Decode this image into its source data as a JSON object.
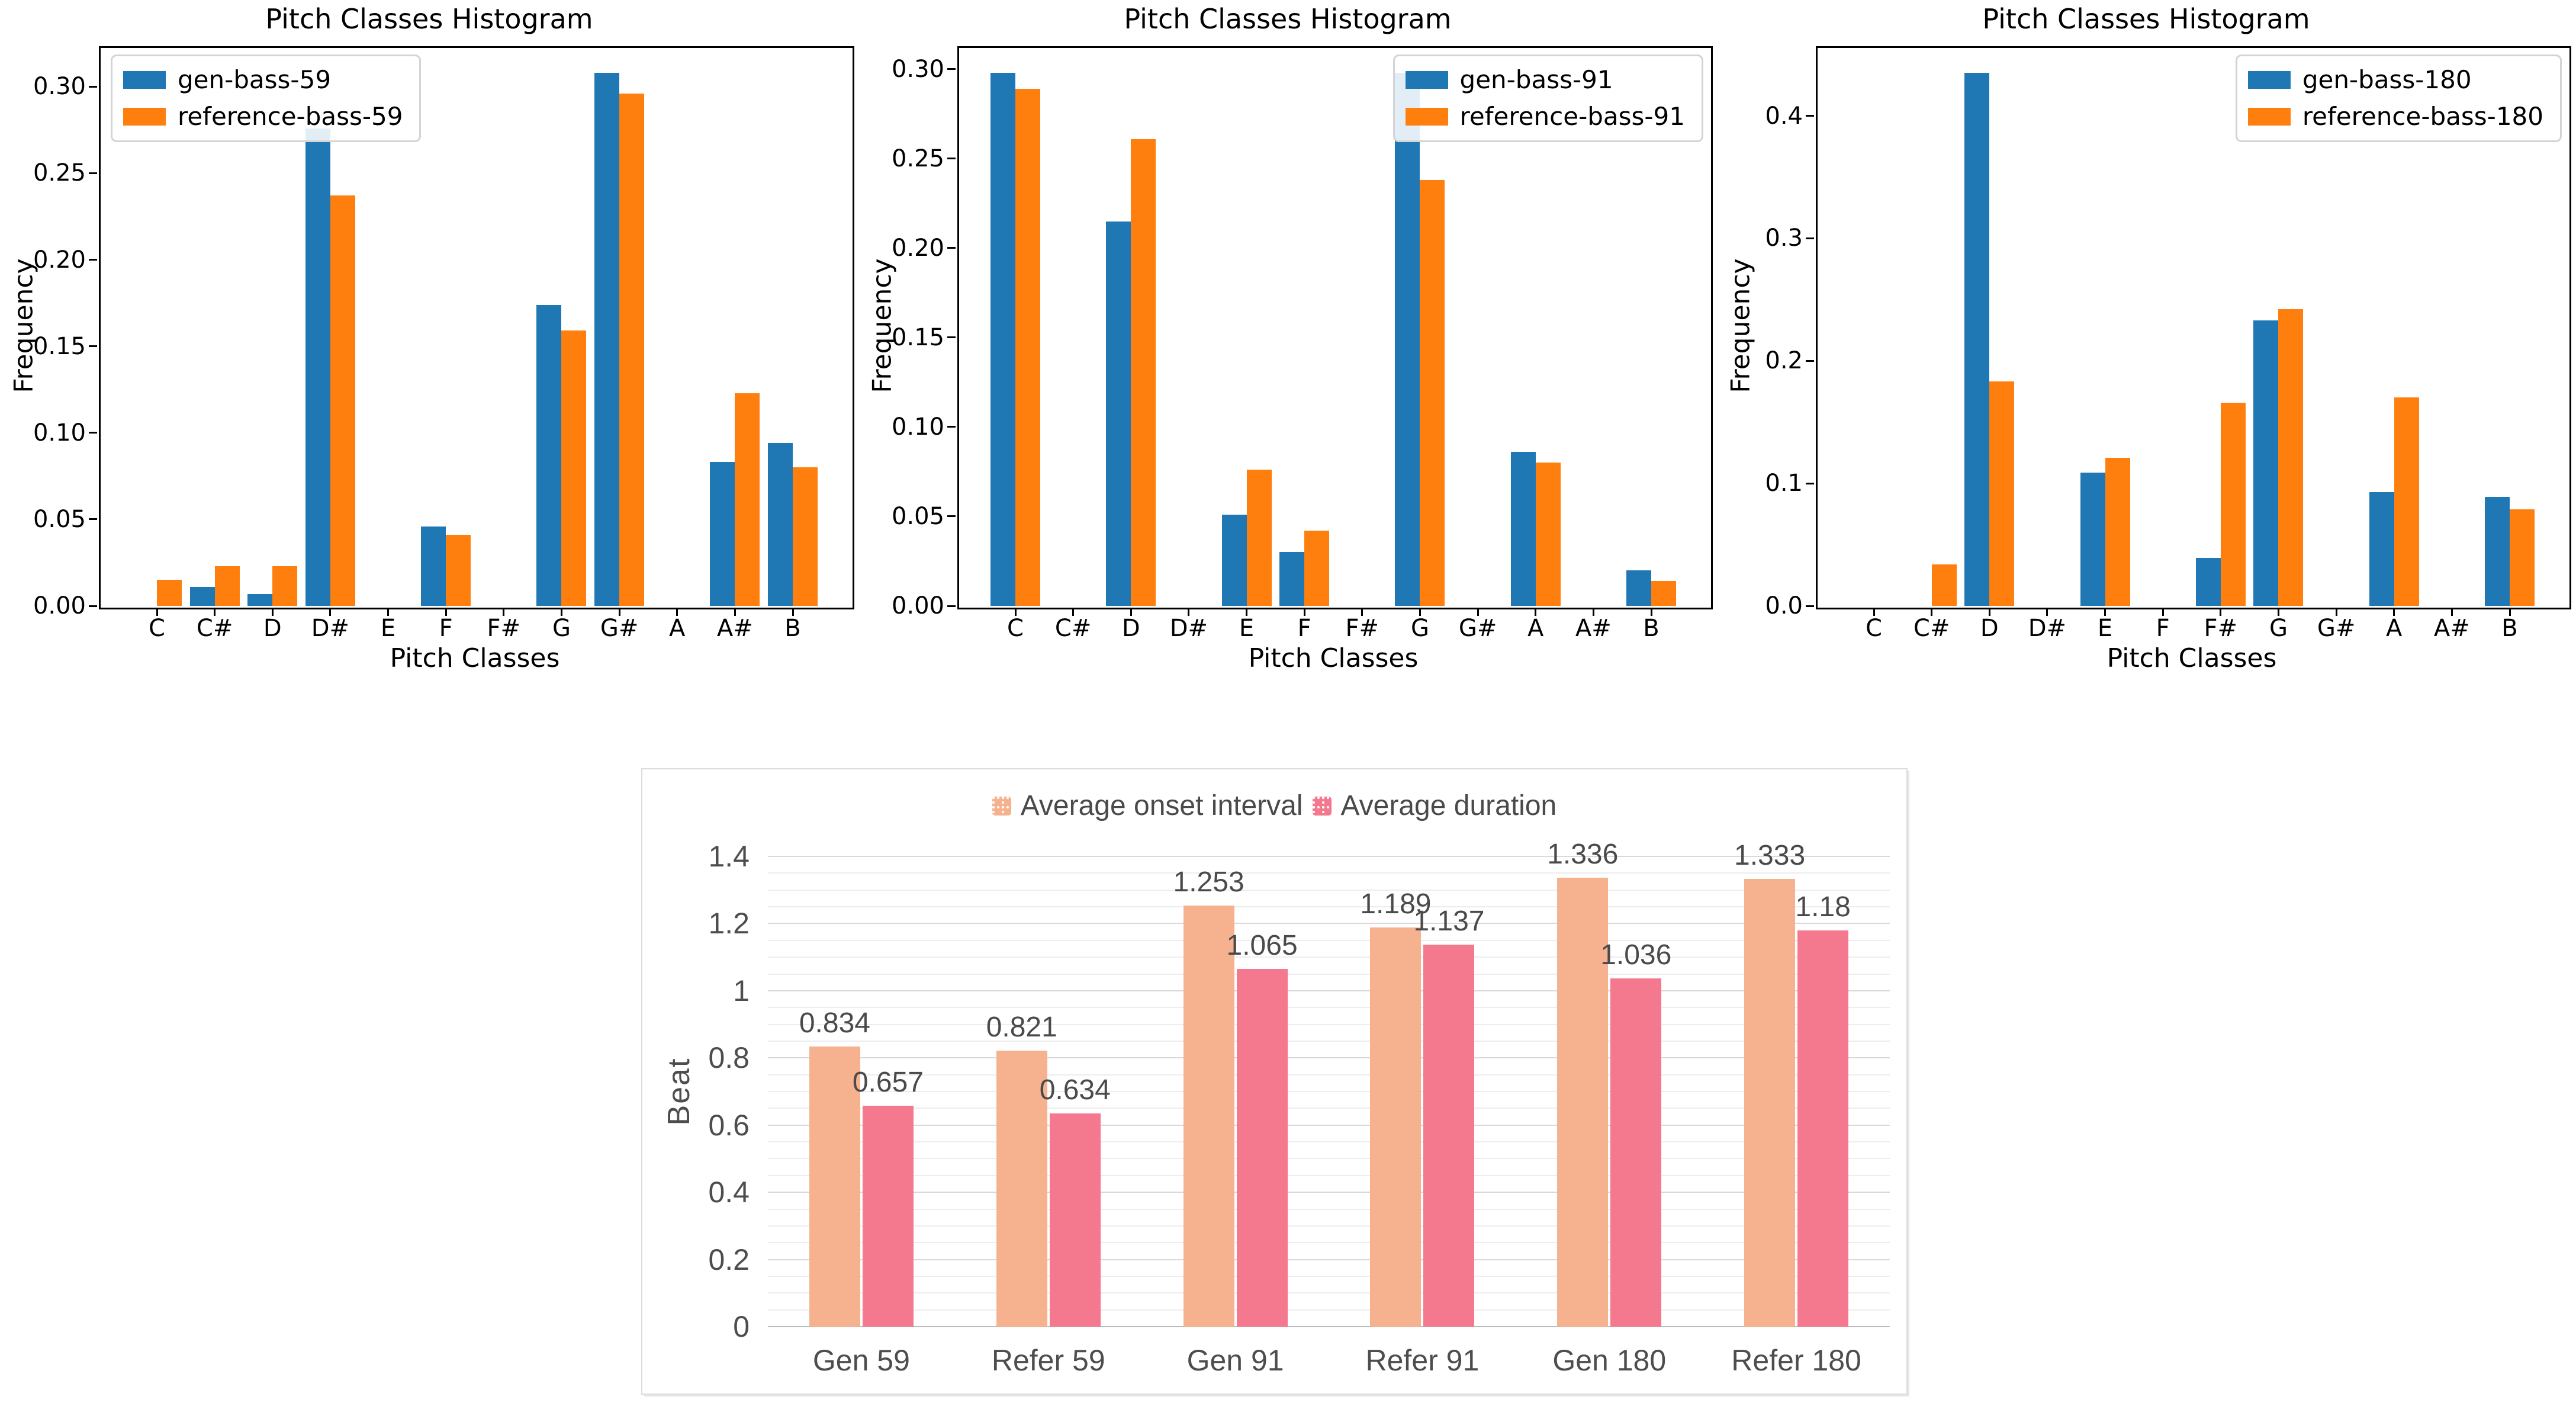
{
  "page": {
    "background": "#ffffff"
  },
  "chart_data": [
    {
      "type": "bar",
      "title": "Pitch Classes Histogram",
      "xlabel": "Pitch Classes",
      "ylabel": "Frequency",
      "categories": [
        "C",
        "C#",
        "D",
        "D#",
        "E",
        "F",
        "F#",
        "G",
        "G#",
        "A",
        "A#",
        "B"
      ],
      "series": [
        {
          "name": "gen-bass-59",
          "color": "#1f77b4",
          "values": [
            0,
            0.011,
            0.007,
            0.276,
            0,
            0.046,
            0,
            0.174,
            0.308,
            0,
            0.083,
            0.094
          ]
        },
        {
          "name": "reference-bass-59",
          "color": "#ff7f0e",
          "values": [
            0.015,
            0.023,
            0.023,
            0.237,
            0,
            0.041,
            0,
            0.159,
            0.296,
            0,
            0.123,
            0.08
          ]
        }
      ],
      "ylim": [
        0,
        0.3234
      ],
      "yticks": {
        "values": [
          0,
          0.05,
          0.1,
          0.15,
          0.2,
          0.25,
          0.3
        ],
        "labels": [
          "0.00",
          "0.05",
          "0.10",
          "0.15",
          "0.20",
          "0.25",
          "0.30"
        ]
      },
      "legend_position": "upper-left",
      "grid": false
    },
    {
      "type": "bar",
      "title": "Pitch Classes Histogram",
      "xlabel": "Pitch Classes",
      "ylabel": "Frequency",
      "categories": [
        "C",
        "C#",
        "D",
        "D#",
        "E",
        "F",
        "F#",
        "G",
        "G#",
        "A",
        "A#",
        "B"
      ],
      "series": [
        {
          "name": "gen-bass-91",
          "color": "#1f77b4",
          "values": [
            0.298,
            0,
            0.215,
            0,
            0.051,
            0.03,
            0,
            0.298,
            0,
            0.086,
            0,
            0.02
          ]
        },
        {
          "name": "reference-bass-91",
          "color": "#ff7f0e",
          "values": [
            0.289,
            0,
            0.261,
            0,
            0.076,
            0.042,
            0,
            0.238,
            0,
            0.08,
            0,
            0.014
          ]
        }
      ],
      "ylim": [
        0,
        0.3129
      ],
      "yticks": {
        "values": [
          0,
          0.05,
          0.1,
          0.15,
          0.2,
          0.25,
          0.3
        ],
        "labels": [
          "0.00",
          "0.05",
          "0.10",
          "0.15",
          "0.20",
          "0.25",
          "0.30"
        ]
      },
      "legend_position": "upper-right",
      "grid": false
    },
    {
      "type": "bar",
      "title": "Pitch Classes Histogram",
      "xlabel": "Pitch Classes",
      "ylabel": "Frequency",
      "categories": [
        "C",
        "C#",
        "D",
        "D#",
        "E",
        "F",
        "F#",
        "G",
        "G#",
        "A",
        "A#",
        "B"
      ],
      "series": [
        {
          "name": "gen-bass-180",
          "color": "#1f77b4",
          "values": [
            0,
            0,
            0.435,
            0,
            0.109,
            0,
            0.039,
            0.233,
            0,
            0.093,
            0,
            0.089
          ]
        },
        {
          "name": "reference-bass-180",
          "color": "#ff7f0e",
          "values": [
            0,
            0.034,
            0.183,
            0,
            0.121,
            0,
            0.166,
            0.242,
            0,
            0.17,
            0,
            0.079
          ]
        }
      ],
      "ylim": [
        0,
        0.4568
      ],
      "yticks": {
        "values": [
          0,
          0.1,
          0.2,
          0.3,
          0.4
        ],
        "labels": [
          "0.0",
          "0.1",
          "0.2",
          "0.3",
          "0.4"
        ]
      },
      "legend_position": "upper-right",
      "grid": false
    },
    {
      "type": "bar",
      "title": "",
      "xlabel": "",
      "ylabel": "Beat",
      "categories": [
        "Gen 59",
        "Refer 59",
        "Gen 91",
        "Refer 91",
        "Gen 180",
        "Refer 180"
      ],
      "series": [
        {
          "name": "Average onset interval",
          "color": "#f6b28f",
          "values": [
            0.834,
            0.821,
            1.253,
            1.189,
            1.336,
            1.333
          ],
          "labels": [
            "0.834",
            "0.821",
            "1.253",
            "1.189",
            "1.336",
            "1.333"
          ]
        },
        {
          "name": "Average duration",
          "color": "#f4788e",
          "values": [
            0.657,
            0.634,
            1.065,
            1.137,
            1.036,
            1.18
          ],
          "labels": [
            "0.657",
            "0.634",
            "1.065",
            "1.137",
            "1.036",
            "1.18"
          ]
        }
      ],
      "ylim": [
        0,
        1.4
      ],
      "yticks": {
        "values": [
          0,
          0.2,
          0.4,
          0.6,
          0.8,
          1,
          1.2,
          1.4
        ],
        "labels": [
          "0",
          "0.2",
          "0.4",
          "0.6",
          "0.8",
          "1",
          "1.2",
          "1.4"
        ]
      },
      "minor_tick_step": 0.05,
      "legend_position": "top-center",
      "grid": true,
      "value_labels": true
    }
  ]
}
